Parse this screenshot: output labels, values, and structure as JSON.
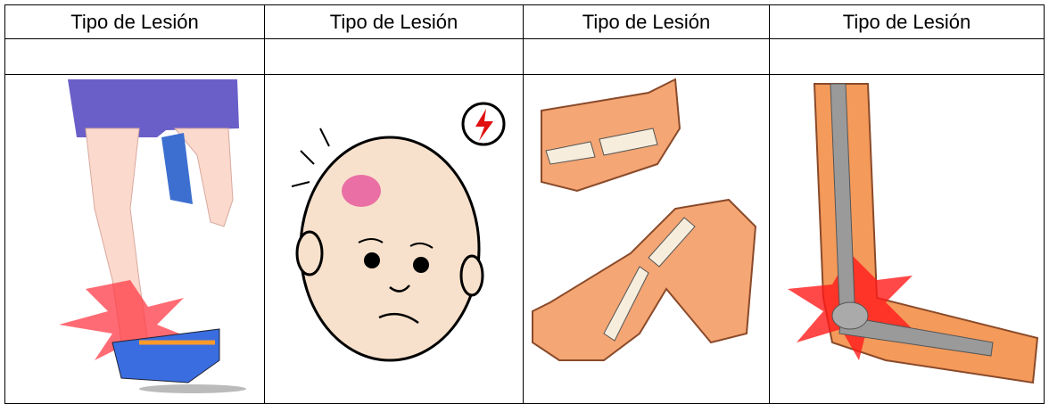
{
  "table": {
    "header": [
      "Tipo de Lesión",
      "Tipo de Lesión",
      "Tipo de Lesión",
      "Tipo de Lesión"
    ]
  }
}
